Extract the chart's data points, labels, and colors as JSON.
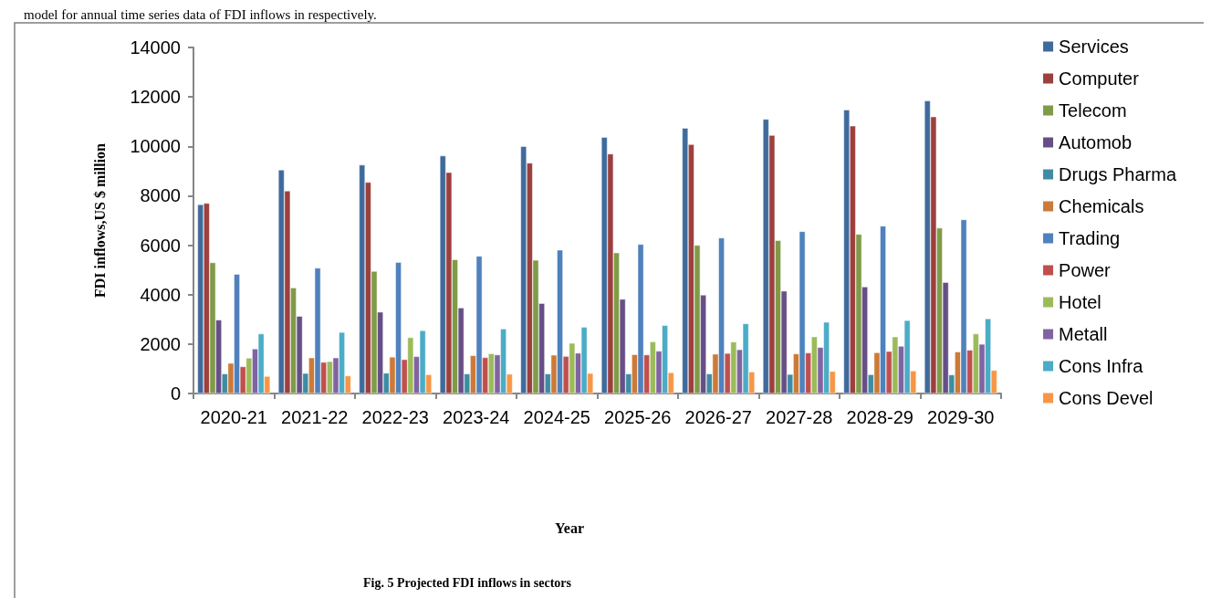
{
  "chart_data": {
    "type": "bar",
    "title": "Fig. 5 Projected FDI inflows in sectors",
    "ylabel": "FDI inflows,US $ million",
    "annotations": [
      "model for annual time series data of FDI inflows in respectively.",
      "Year"
    ],
    "categories": [
      "2020-21",
      "2021-22",
      "2022-23",
      "2023-24",
      "2024-25",
      "2025-26",
      "2026-27",
      "2027-28",
      "2028-29",
      "2029-30"
    ],
    "series": [
      {
        "name": "Services",
        "color": "#3f6a9c",
        "values": [
          7650,
          9050,
          9250,
          9620,
          10000,
          10370,
          10740,
          11100,
          11480,
          11850
        ]
      },
      {
        "name": "Computer",
        "color": "#9c403e",
        "values": [
          7700,
          8200,
          8550,
          8950,
          9330,
          9700,
          10080,
          10450,
          10830,
          11200
        ]
      },
      {
        "name": "Telecom",
        "color": "#7f9b47",
        "values": [
          5300,
          4280,
          4950,
          5420,
          5400,
          5700,
          6000,
          6200,
          6450,
          6700
        ]
      },
      {
        "name": "Automob",
        "color": "#664f86",
        "values": [
          2980,
          3130,
          3300,
          3470,
          3650,
          3820,
          3990,
          4150,
          4320,
          4500
        ]
      },
      {
        "name": "Drugs Pharma",
        "color": "#3d8ca3",
        "values": [
          800,
          820,
          830,
          800,
          800,
          800,
          800,
          780,
          770,
          760
        ]
      },
      {
        "name": "Chemicals",
        "color": "#cc7a38",
        "values": [
          1230,
          1450,
          1480,
          1540,
          1560,
          1580,
          1600,
          1610,
          1660,
          1690
        ]
      },
      {
        "name": "Trading",
        "color": "#4f81bd",
        "values": [
          4830,
          5080,
          5310,
          5560,
          5810,
          6040,
          6300,
          6560,
          6780,
          7040
        ]
      },
      {
        "name": "Power",
        "color": "#c0504d",
        "values": [
          1090,
          1270,
          1380,
          1460,
          1510,
          1570,
          1630,
          1650,
          1710,
          1760
        ]
      },
      {
        "name": "Hotel",
        "color": "#9bbb59",
        "values": [
          1440,
          1300,
          2270,
          1620,
          2040,
          2100,
          2090,
          2300,
          2300,
          2420
        ]
      },
      {
        "name": "Metall",
        "color": "#8064a2",
        "values": [
          1810,
          1450,
          1500,
          1570,
          1640,
          1720,
          1780,
          1870,
          1920,
          2000
        ]
      },
      {
        "name": "Cons Infra",
        "color": "#4bacc6",
        "values": [
          2420,
          2480,
          2550,
          2620,
          2690,
          2760,
          2830,
          2890,
          2960,
          3030
        ]
      },
      {
        "name": "Cons Devel",
        "color": "#f79646",
        "values": [
          700,
          720,
          770,
          790,
          820,
          850,
          880,
          900,
          920,
          940
        ]
      }
    ],
    "ylim": [
      0,
      14000
    ],
    "yticks": [
      0,
      2000,
      4000,
      6000,
      8000,
      10000,
      12000,
      14000
    ],
    "grid": false,
    "legend": "right"
  }
}
